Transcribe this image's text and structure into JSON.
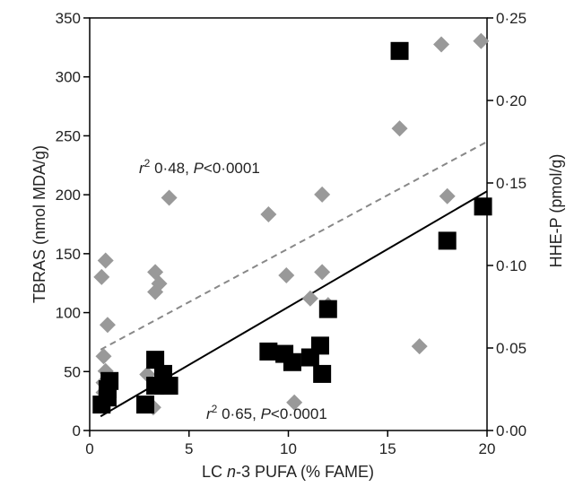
{
  "chart_data": {
    "type": "scatter",
    "xlabel": "LC n-3 PUFA (% FAME)",
    "ylabel_left": "TBRAS (nmol MDA/g)",
    "ylabel_right": "HHE-P (pmol/g)",
    "xlim": [
      0,
      20
    ],
    "ylim_left": [
      0,
      350
    ],
    "ylim_right": [
      0,
      0.25
    ],
    "x_ticks": [
      "0",
      "5",
      "10",
      "15",
      "20"
    ],
    "y_left_ticks": [
      "0",
      "50",
      "100",
      "150",
      "200",
      "250",
      "300",
      "350"
    ],
    "y_right_ticks": [
      "0·00",
      "0·05",
      "0·10",
      "0·15",
      "0·20",
      "0·25"
    ],
    "grid": false,
    "series": [
      {
        "axis": "right",
        "marker": "diamond",
        "color": "#999999",
        "trendline": {
          "style": "dashed",
          "color": "#888888",
          "y_at_x_min": 0.049,
          "y_at_x_max": 0.175
        },
        "points": [
          [
            0.6,
            0.093
          ],
          [
            0.8,
            0.103
          ],
          [
            0.9,
            0.064
          ],
          [
            0.7,
            0.045
          ],
          [
            0.8,
            0.036
          ],
          [
            0.7,
            0.029
          ],
          [
            0.9,
            0.026
          ],
          [
            0.7,
            0.023
          ],
          [
            3.3,
            0.096
          ],
          [
            3.5,
            0.089
          ],
          [
            3.3,
            0.084
          ],
          [
            2.9,
            0.034
          ],
          [
            3.2,
            0.014
          ],
          [
            4.0,
            0.141
          ],
          [
            9.0,
            0.131
          ],
          [
            9.9,
            0.094
          ],
          [
            10.3,
            0.017
          ],
          [
            11.1,
            0.08
          ],
          [
            11.7,
            0.096
          ],
          [
            11.7,
            0.143
          ],
          [
            12.0,
            0.076
          ],
          [
            15.6,
            0.183
          ],
          [
            16.6,
            0.051
          ],
          [
            17.7,
            0.234
          ],
          [
            18.0,
            0.142
          ],
          [
            19.7,
            0.236
          ]
        ]
      },
      {
        "axis": "left",
        "marker": "square",
        "color": "#000000",
        "trendline": {
          "style": "solid",
          "color": "#000000",
          "y_at_x_min": 12,
          "y_at_x_max": 203
        },
        "points": [
          [
            0.6,
            22
          ],
          [
            0.9,
            28
          ],
          [
            0.9,
            35
          ],
          [
            1.0,
            42
          ],
          [
            2.8,
            22
          ],
          [
            3.3,
            60
          ],
          [
            3.3,
            38
          ],
          [
            3.7,
            48
          ],
          [
            4.0,
            38
          ],
          [
            9.0,
            67
          ],
          [
            9.8,
            65
          ],
          [
            10.2,
            58
          ],
          [
            11.1,
            62
          ],
          [
            11.6,
            72
          ],
          [
            11.7,
            48
          ],
          [
            12.0,
            103
          ],
          [
            15.6,
            322
          ],
          [
            18.0,
            161
          ],
          [
            19.8,
            190
          ]
        ]
      }
    ],
    "annotations": [
      {
        "id": "upper",
        "r_text": "r",
        "sup": "2",
        "mid": " 0·48, ",
        "p_text": "P",
        "rest": "<0·0001"
      },
      {
        "id": "lower",
        "r_text": "r",
        "sup": "2",
        "mid": " 0·65, ",
        "p_text": "P",
        "rest": "<0·0001"
      }
    ]
  }
}
